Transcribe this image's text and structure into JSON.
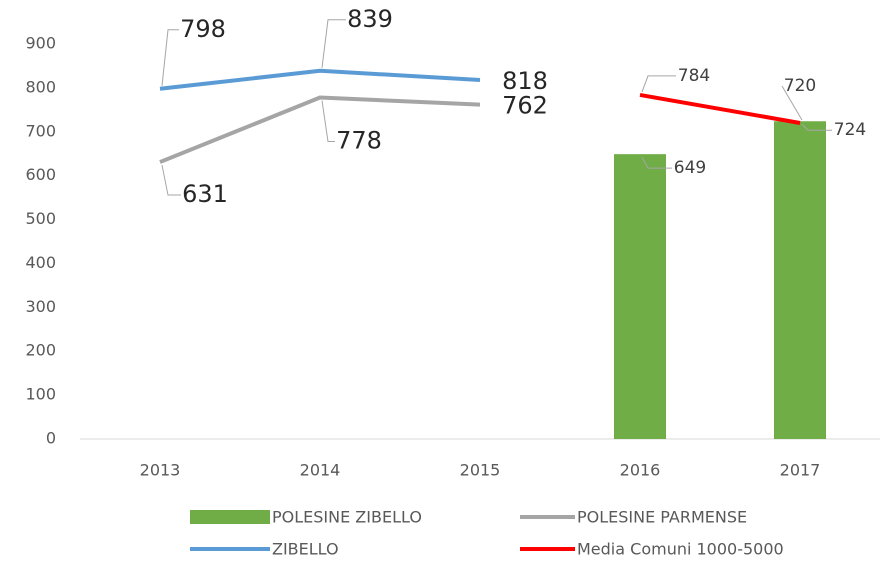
{
  "chart_data": {
    "type": "combo",
    "categories": [
      "2013",
      "2014",
      "2015",
      "2016",
      "2017"
    ],
    "series": [
      {
        "name": "POLESINE ZIBELLO",
        "type": "bar",
        "color": "#70ad47",
        "values": [
          null,
          null,
          null,
          649,
          724
        ]
      },
      {
        "name": "POLESINE PARMENSE",
        "type": "line",
        "color": "#a5a5a5",
        "values": [
          631,
          778,
          762,
          null,
          null
        ]
      },
      {
        "name": "ZIBELLO",
        "type": "line",
        "color": "#5b9bd5",
        "values": [
          798,
          839,
          818,
          null,
          null
        ]
      },
      {
        "name": "Media Comuni 1000-5000",
        "type": "line",
        "color": "#ff0000",
        "values": [
          null,
          null,
          null,
          784,
          720
        ]
      }
    ],
    "ylim": [
      0,
      900
    ],
    "yticks": [
      0,
      100,
      200,
      300,
      400,
      500,
      600,
      700,
      800,
      900
    ],
    "grid": false
  }
}
